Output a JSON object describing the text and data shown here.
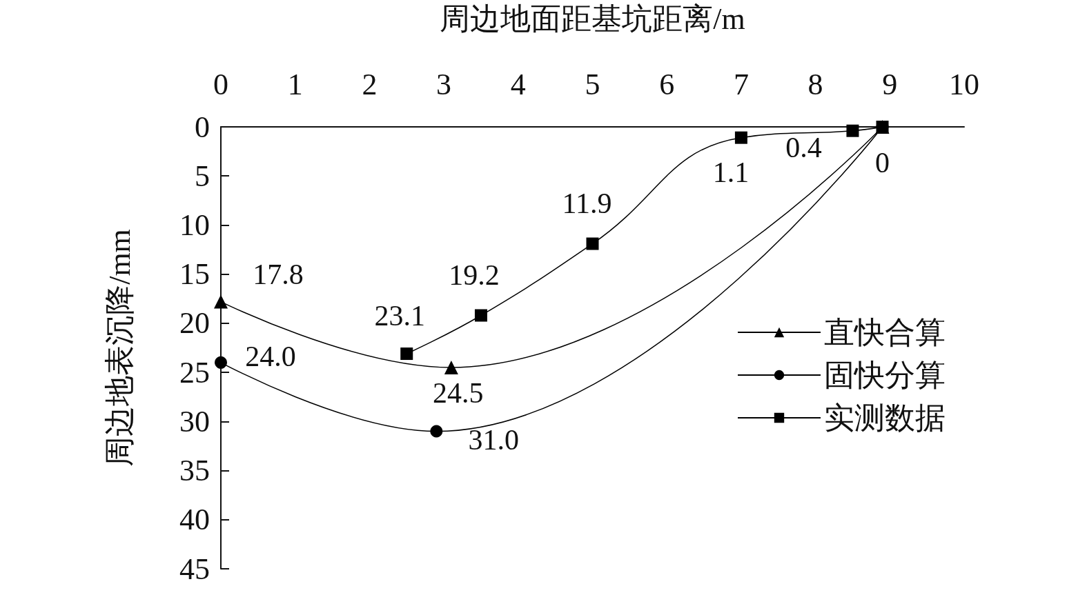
{
  "chart_data": {
    "type": "line",
    "xlabel": "周边地面距基坑距离/m",
    "ylabel": "周边地表沉降/mm",
    "xlim": [
      0,
      10
    ],
    "xticks": [
      0,
      1,
      2,
      3,
      4,
      5,
      6,
      7,
      8,
      9,
      10
    ],
    "ylim": [
      45,
      0
    ],
    "yticks": [
      0,
      5,
      10,
      15,
      20,
      25,
      30,
      35,
      40,
      45
    ],
    "grid": false,
    "legend": "right",
    "line_style": "solid",
    "series": [
      {
        "name": "直快合算",
        "color": "#000000",
        "marker": "triangle",
        "x": [
          0,
          3.1,
          8.9
        ],
        "values": [
          17.8,
          24.5,
          0
        ],
        "value_labels": [
          "17.8",
          "24.5",
          null
        ]
      },
      {
        "name": "固快分算",
        "color": "#000000",
        "marker": "circle",
        "x": [
          0,
          2.9,
          8.9
        ],
        "values": [
          24.0,
          31.0,
          0
        ],
        "value_labels": [
          "24.0",
          "31.0",
          null
        ]
      },
      {
        "name": "实测数据",
        "color": "#000000",
        "marker": "square",
        "x": [
          2.5,
          3.5,
          5,
          7,
          8.5,
          8.9
        ],
        "values": [
          23.1,
          19.2,
          11.9,
          1.1,
          0.4,
          0
        ],
        "value_labels": [
          "23.1",
          "19.2",
          "11.9",
          "1.1",
          "0.4",
          "0"
        ]
      }
    ]
  }
}
